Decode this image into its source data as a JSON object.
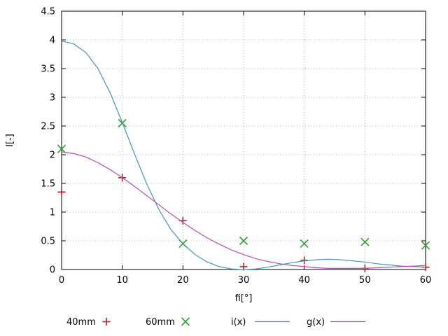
{
  "chart_data": {
    "type": "line",
    "title": "",
    "xlabel": "fi[°]",
    "ylabel": "I[-]",
    "xlim": [
      0,
      60
    ],
    "ylim": [
      0,
      4.5
    ],
    "xticks": [
      0,
      10,
      20,
      30,
      40,
      50,
      60
    ],
    "yticks": [
      0,
      0.5,
      1,
      1.5,
      2,
      2.5,
      3,
      3.5,
      4,
      4.5
    ],
    "grid": true,
    "legend_position": "bottom",
    "colors": {
      "axis": "#000000",
      "grid": "#aab4be",
      "text": "#000000",
      "background": "#ffffff"
    },
    "series": [
      {
        "name": "40mm",
        "type": "points",
        "marker": "plus",
        "color": "#b22222",
        "x": [
          0,
          10,
          20,
          30,
          40,
          50,
          60
        ],
        "y": [
          1.35,
          1.6,
          0.85,
          0.05,
          0.16,
          0.02,
          0.04
        ]
      },
      {
        "name": "60mm",
        "type": "points",
        "marker": "cross",
        "color": "#2f9e2f",
        "x": [
          0,
          10,
          20,
          30,
          40,
          50,
          60
        ],
        "y": [
          2.1,
          2.55,
          0.45,
          0.5,
          0.45,
          0.48,
          0.42
        ]
      },
      {
        "name": "i(x)",
        "type": "line",
        "color": "#4496bb",
        "x": [
          0,
          2,
          4,
          6,
          8,
          10,
          12,
          14,
          16,
          18,
          20,
          22,
          24,
          26,
          28,
          30,
          32,
          34,
          36,
          38,
          40,
          42,
          44,
          46,
          48,
          50,
          52,
          54,
          56,
          58,
          60
        ],
        "y": [
          3.98,
          3.93,
          3.78,
          3.5,
          3.08,
          2.56,
          2.02,
          1.5,
          1.05,
          0.7,
          0.45,
          0.26,
          0.13,
          0.05,
          0.01,
          0.0,
          0.01,
          0.04,
          0.08,
          0.12,
          0.15,
          0.17,
          0.18,
          0.17,
          0.15,
          0.13,
          0.1,
          0.08,
          0.06,
          0.05,
          0.04
        ]
      },
      {
        "name": "g(x)",
        "type": "line",
        "color": "#b44fb4",
        "x": [
          0,
          2,
          4,
          6,
          8,
          10,
          12,
          14,
          16,
          18,
          20,
          22,
          24,
          26,
          28,
          30,
          32,
          34,
          36,
          38,
          40,
          42,
          44,
          46,
          48,
          50,
          52,
          54,
          56,
          58,
          60
        ],
        "y": [
          2.05,
          2.02,
          1.96,
          1.86,
          1.74,
          1.6,
          1.45,
          1.29,
          1.13,
          0.97,
          0.82,
          0.68,
          0.55,
          0.44,
          0.34,
          0.26,
          0.19,
          0.14,
          0.1,
          0.07,
          0.05,
          0.03,
          0.02,
          0.02,
          0.02,
          0.02,
          0.03,
          0.04,
          0.05,
          0.06,
          0.07
        ]
      }
    ]
  }
}
